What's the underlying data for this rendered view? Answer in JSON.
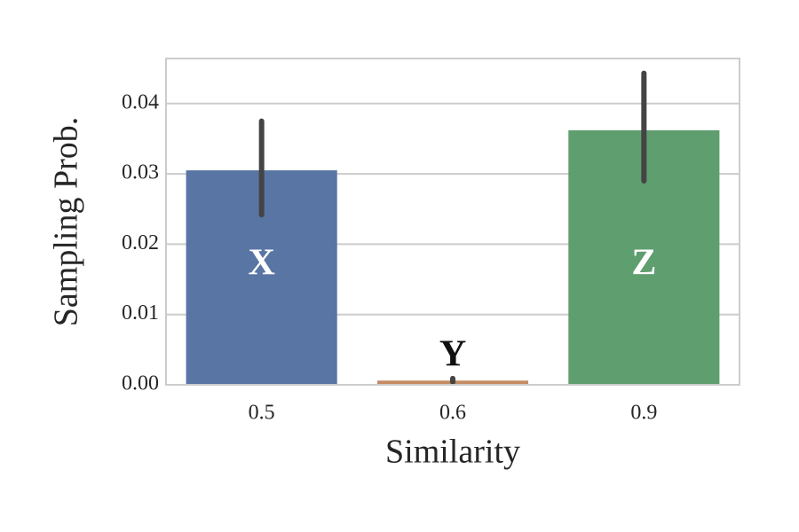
{
  "chart_data": {
    "type": "bar",
    "x_label": "Similarity",
    "y_label": "Sampling Prob.",
    "categories": [
      "0.5",
      "0.6",
      "0.9"
    ],
    "values": [
      0.0305,
      0.0006,
      0.0362
    ],
    "ci_low": [
      0.0242,
      0.0004,
      0.029
    ],
    "ci_high": [
      0.0375,
      0.0009,
      0.0443
    ],
    "colors": [
      "#5975a4",
      "#c48b64",
      "#5f9e6e"
    ],
    "bar_labels": [
      "X",
      "Y",
      "Z"
    ],
    "bar_label_colors": [
      "#ffffff",
      "#111111",
      "#ffffff"
    ],
    "ylim": [
      0,
      0.0464
    ],
    "yticks": [
      {
        "value": 0,
        "label": "0.00"
      },
      {
        "value": 0.01,
        "label": "0.01"
      },
      {
        "value": 0.02,
        "label": "0.02"
      },
      {
        "value": 0.03,
        "label": "0.03"
      },
      {
        "value": 0.04,
        "label": "0.04"
      }
    ],
    "grid": true
  }
}
